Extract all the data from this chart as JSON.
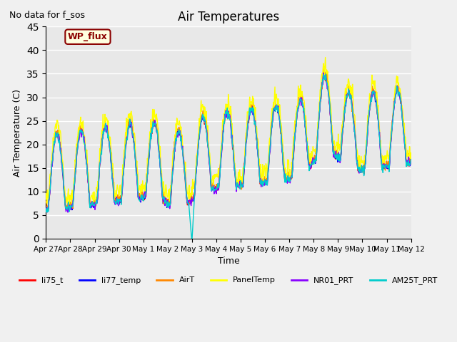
{
  "title": "Air Temperatures",
  "ylabel": "Air Temperature (C)",
  "xlabel": "Time",
  "no_data_text": "No data for f_sos",
  "wp_flux_label": "WP_flux",
  "ylim": [
    0,
    45
  ],
  "series_colors": {
    "li75_t": "#FF0000",
    "li77_temp": "#0000FF",
    "AirT": "#FF8800",
    "PanelTemp": "#FFFF00",
    "NR01_PRT": "#8800FF",
    "AM25T_PRT": "#00CCCC"
  },
  "legend_labels": [
    "li75_t",
    "li77_temp",
    "AirT",
    "PanelTemp",
    "NR01_PRT",
    "AM25T_PRT"
  ],
  "x_tick_labels": [
    "Apr 27",
    "Apr 28",
    "Apr 29",
    "Apr 30",
    "May 1",
    "May 2",
    "May 3",
    "May 4",
    "May 5",
    "May 6",
    "May 7",
    "May 8",
    "May 9",
    "May 10",
    "May 11",
    "May 12"
  ],
  "background_color": "#E8E8E8",
  "plot_bg_color": "#E8E8E8",
  "grid_color": "#FFFFFF"
}
